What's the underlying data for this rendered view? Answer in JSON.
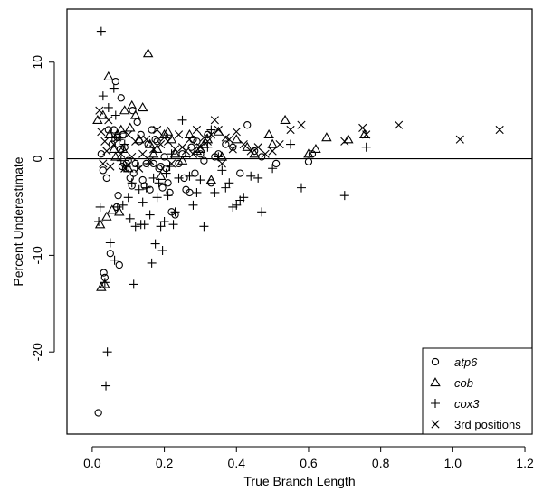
{
  "chart_data": {
    "type": "scatter",
    "xlabel": "True Branch Length",
    "ylabel": "Percent Underestimate",
    "xlim": [
      -0.07,
      1.22
    ],
    "ylim": [
      -28.5,
      15.5
    ],
    "xticks": [
      0.0,
      0.2,
      0.4,
      0.6,
      0.8,
      1.0,
      1.2
    ],
    "xtick_labels": [
      "0.0",
      "0.2",
      "0.4",
      "0.6",
      "0.8",
      "1.0",
      "1.2"
    ],
    "yticks": [
      -20,
      -10,
      0,
      10
    ],
    "ytick_labels": [
      "-20",
      "-10",
      "0",
      "10"
    ],
    "reference_line_y": 0,
    "legend_position": "bottom-right",
    "series": [
      {
        "name": "atp6",
        "marker": "circle",
        "points": [
          [
            0.017,
            -26.3
          ],
          [
            0.025,
            0.5
          ],
          [
            0.03,
            -1.2
          ],
          [
            0.032,
            -11.8
          ],
          [
            0.035,
            -12.3
          ],
          [
            0.04,
            -2.0
          ],
          [
            0.045,
            3.0
          ],
          [
            0.05,
            -9.8
          ],
          [
            0.055,
            1.5
          ],
          [
            0.06,
            3.0
          ],
          [
            0.065,
            8.0
          ],
          [
            0.068,
            -5.0
          ],
          [
            0.07,
            2.2
          ],
          [
            0.072,
            -3.8
          ],
          [
            0.075,
            -11.0
          ],
          [
            0.078,
            1.0
          ],
          [
            0.08,
            6.3
          ],
          [
            0.083,
            -0.8
          ],
          [
            0.085,
            2.5
          ],
          [
            0.09,
            1.2
          ],
          [
            0.093,
            -1.0
          ],
          [
            0.095,
            -0.5
          ],
          [
            0.1,
            -0.2
          ],
          [
            0.105,
            -2.0
          ],
          [
            0.11,
            -2.8
          ],
          [
            0.112,
            5.0
          ],
          [
            0.115,
            -1.5
          ],
          [
            0.12,
            -0.5
          ],
          [
            0.125,
            3.8
          ],
          [
            0.13,
            1.8
          ],
          [
            0.135,
            2.5
          ],
          [
            0.14,
            -2.2
          ],
          [
            0.145,
            -2.8
          ],
          [
            0.15,
            -0.5
          ],
          [
            0.155,
            1.5
          ],
          [
            0.16,
            -3.2
          ],
          [
            0.165,
            3.0
          ],
          [
            0.17,
            -0.5
          ],
          [
            0.175,
            2.0
          ],
          [
            0.18,
            1.8
          ],
          [
            0.185,
            -1.0
          ],
          [
            0.19,
            -0.8
          ],
          [
            0.195,
            -3.0
          ],
          [
            0.2,
            0.2
          ],
          [
            0.205,
            -1.0
          ],
          [
            0.21,
            -2.5
          ],
          [
            0.215,
            -3.5
          ],
          [
            0.22,
            -5.5
          ],
          [
            0.23,
            -5.8
          ],
          [
            0.24,
            -0.5
          ],
          [
            0.25,
            0.5
          ],
          [
            0.255,
            -2.0
          ],
          [
            0.26,
            -3.2
          ],
          [
            0.27,
            -3.5
          ],
          [
            0.275,
            1.2
          ],
          [
            0.28,
            2.0
          ],
          [
            0.285,
            -1.5
          ],
          [
            0.29,
            1.8
          ],
          [
            0.3,
            0.5
          ],
          [
            0.31,
            -0.2
          ],
          [
            0.32,
            2.5
          ],
          [
            0.33,
            -2.5
          ],
          [
            0.34,
            0.2
          ],
          [
            0.35,
            0.5
          ],
          [
            0.37,
            1.5
          ],
          [
            0.39,
            1.2
          ],
          [
            0.41,
            -1.5
          ],
          [
            0.43,
            3.5
          ],
          [
            0.45,
            0.8
          ],
          [
            0.47,
            0.2
          ],
          [
            0.51,
            -0.5
          ],
          [
            0.6,
            -0.3
          ],
          [
            0.61,
            0.5
          ]
        ]
      },
      {
        "name": "cob",
        "marker": "triangle",
        "points": [
          [
            0.015,
            4.0
          ],
          [
            0.022,
            -6.8
          ],
          [
            0.025,
            -13.3
          ],
          [
            0.03,
            4.5
          ],
          [
            0.035,
            -13.0
          ],
          [
            0.04,
            -6.0
          ],
          [
            0.045,
            8.5
          ],
          [
            0.048,
            2.5
          ],
          [
            0.055,
            -5.3
          ],
          [
            0.06,
            1.0
          ],
          [
            0.065,
            0.2
          ],
          [
            0.07,
            2.5
          ],
          [
            0.075,
            -5.5
          ],
          [
            0.08,
            3.0
          ],
          [
            0.085,
            1.0
          ],
          [
            0.09,
            5.0
          ],
          [
            0.1,
            -1.0
          ],
          [
            0.105,
            3.2
          ],
          [
            0.11,
            5.5
          ],
          [
            0.12,
            4.5
          ],
          [
            0.13,
            2.0
          ],
          [
            0.14,
            5.3
          ],
          [
            0.155,
            10.9
          ],
          [
            0.16,
            1.5
          ],
          [
            0.17,
            0.5
          ],
          [
            0.18,
            1.0
          ],
          [
            0.19,
            -1.8
          ],
          [
            0.2,
            2.5
          ],
          [
            0.21,
            2.8
          ],
          [
            0.22,
            2.0
          ],
          [
            0.23,
            0.5
          ],
          [
            0.25,
            -0.2
          ],
          [
            0.27,
            2.5
          ],
          [
            0.29,
            0.8
          ],
          [
            0.3,
            1.0
          ],
          [
            0.31,
            1.5
          ],
          [
            0.32,
            2.0
          ],
          [
            0.33,
            -2.2
          ],
          [
            0.35,
            2.8
          ],
          [
            0.36,
            0.2
          ],
          [
            0.4,
            2.0
          ],
          [
            0.43,
            1.2
          ],
          [
            0.45,
            0.5
          ],
          [
            0.49,
            2.5
          ],
          [
            0.5,
            1.5
          ],
          [
            0.535,
            4.0
          ],
          [
            0.6,
            0.5
          ],
          [
            0.62,
            1.0
          ],
          [
            0.65,
            2.2
          ],
          [
            0.71,
            2.0
          ],
          [
            0.755,
            2.5
          ]
        ]
      },
      {
        "name": "cox3",
        "marker": "plus",
        "points": [
          [
            0.018,
            -6.5
          ],
          [
            0.022,
            -5.0
          ],
          [
            0.025,
            13.2
          ],
          [
            0.03,
            6.5
          ],
          [
            0.035,
            -12.8
          ],
          [
            0.038,
            -23.5
          ],
          [
            0.042,
            -20.0
          ],
          [
            0.045,
            5.3
          ],
          [
            0.05,
            -8.7
          ],
          [
            0.055,
            2.2
          ],
          [
            0.06,
            7.3
          ],
          [
            0.062,
            -10.5
          ],
          [
            0.065,
            4.5
          ],
          [
            0.07,
            -5.0
          ],
          [
            0.075,
            2.0
          ],
          [
            0.08,
            -0.2
          ],
          [
            0.085,
            -4.8
          ],
          [
            0.09,
            1.5
          ],
          [
            0.095,
            -0.8
          ],
          [
            0.1,
            -4.0
          ],
          [
            0.105,
            -6.2
          ],
          [
            0.11,
            -2.5
          ],
          [
            0.115,
            -13.0
          ],
          [
            0.12,
            -7.0
          ],
          [
            0.125,
            -0.8
          ],
          [
            0.13,
            -3.2
          ],
          [
            0.135,
            -6.8
          ],
          [
            0.14,
            -4.5
          ],
          [
            0.145,
            -6.8
          ],
          [
            0.15,
            -3.0
          ],
          [
            0.155,
            -0.5
          ],
          [
            0.16,
            -5.8
          ],
          [
            0.165,
            -10.8
          ],
          [
            0.17,
            -2.0
          ],
          [
            0.175,
            -8.8
          ],
          [
            0.18,
            -4.0
          ],
          [
            0.185,
            -2.5
          ],
          [
            0.19,
            -7.0
          ],
          [
            0.195,
            -9.5
          ],
          [
            0.2,
            -6.5
          ],
          [
            0.205,
            -1.5
          ],
          [
            0.21,
            -3.8
          ],
          [
            0.215,
            -0.8
          ],
          [
            0.22,
            0.5
          ],
          [
            0.225,
            -6.8
          ],
          [
            0.23,
            -5.5
          ],
          [
            0.24,
            -2.0
          ],
          [
            0.25,
            4.0
          ],
          [
            0.26,
            0.2
          ],
          [
            0.27,
            -1.8
          ],
          [
            0.28,
            -4.8
          ],
          [
            0.29,
            -3.5
          ],
          [
            0.3,
            -2.2
          ],
          [
            0.31,
            -7.0
          ],
          [
            0.32,
            1.2
          ],
          [
            0.33,
            3.0
          ],
          [
            0.34,
            -3.5
          ],
          [
            0.35,
            0.2
          ],
          [
            0.36,
            -1.2
          ],
          [
            0.37,
            -3.0
          ],
          [
            0.38,
            -2.5
          ],
          [
            0.39,
            -5.0
          ],
          [
            0.4,
            -4.8
          ],
          [
            0.41,
            -4.3
          ],
          [
            0.42,
            -4.0
          ],
          [
            0.44,
            -1.8
          ],
          [
            0.46,
            -2.0
          ],
          [
            0.47,
            -5.5
          ],
          [
            0.5,
            -1.0
          ],
          [
            0.55,
            1.5
          ],
          [
            0.58,
            -3.0
          ],
          [
            0.7,
            -3.8
          ],
          [
            0.76,
            1.2
          ]
        ]
      },
      {
        "name": "3rd positions",
        "marker": "cross",
        "points": [
          [
            0.02,
            5.0
          ],
          [
            0.025,
            2.8
          ],
          [
            0.03,
            -0.5
          ],
          [
            0.035,
            1.8
          ],
          [
            0.04,
            0.8
          ],
          [
            0.045,
            4.0
          ],
          [
            0.05,
            -0.8
          ],
          [
            0.06,
            1.5
          ],
          [
            0.07,
            2.2
          ],
          [
            0.08,
            0.5
          ],
          [
            0.09,
            -1.0
          ],
          [
            0.1,
            2.5
          ],
          [
            0.11,
            0.2
          ],
          [
            0.12,
            1.8
          ],
          [
            0.13,
            -1.0
          ],
          [
            0.14,
            0.5
          ],
          [
            0.15,
            2.0
          ],
          [
            0.16,
            -0.2
          ],
          [
            0.17,
            1.0
          ],
          [
            0.18,
            3.0
          ],
          [
            0.19,
            1.5
          ],
          [
            0.2,
            2.2
          ],
          [
            0.21,
            1.8
          ],
          [
            0.22,
            -0.5
          ],
          [
            0.23,
            1.0
          ],
          [
            0.24,
            2.5
          ],
          [
            0.25,
            1.2
          ],
          [
            0.26,
            0.8
          ],
          [
            0.27,
            2.0
          ],
          [
            0.28,
            0.5
          ],
          [
            0.29,
            3.0
          ],
          [
            0.3,
            1.2
          ],
          [
            0.31,
            2.2
          ],
          [
            0.32,
            1.8
          ],
          [
            0.33,
            2.5
          ],
          [
            0.34,
            4.0
          ],
          [
            0.35,
            3.0
          ],
          [
            0.36,
            -0.5
          ],
          [
            0.37,
            2.2
          ],
          [
            0.38,
            2.0
          ],
          [
            0.39,
            1.0
          ],
          [
            0.4,
            2.8
          ],
          [
            0.42,
            1.5
          ],
          [
            0.44,
            0.8
          ],
          [
            0.46,
            1.2
          ],
          [
            0.48,
            0.5
          ],
          [
            0.5,
            0.8
          ],
          [
            0.52,
            1.5
          ],
          [
            0.55,
            3.0
          ],
          [
            0.58,
            3.5
          ],
          [
            0.7,
            1.8
          ],
          [
            0.75,
            3.2
          ],
          [
            0.76,
            2.5
          ],
          [
            0.85,
            3.5
          ],
          [
            1.02,
            2.0
          ],
          [
            1.13,
            3.0
          ]
        ]
      }
    ]
  }
}
